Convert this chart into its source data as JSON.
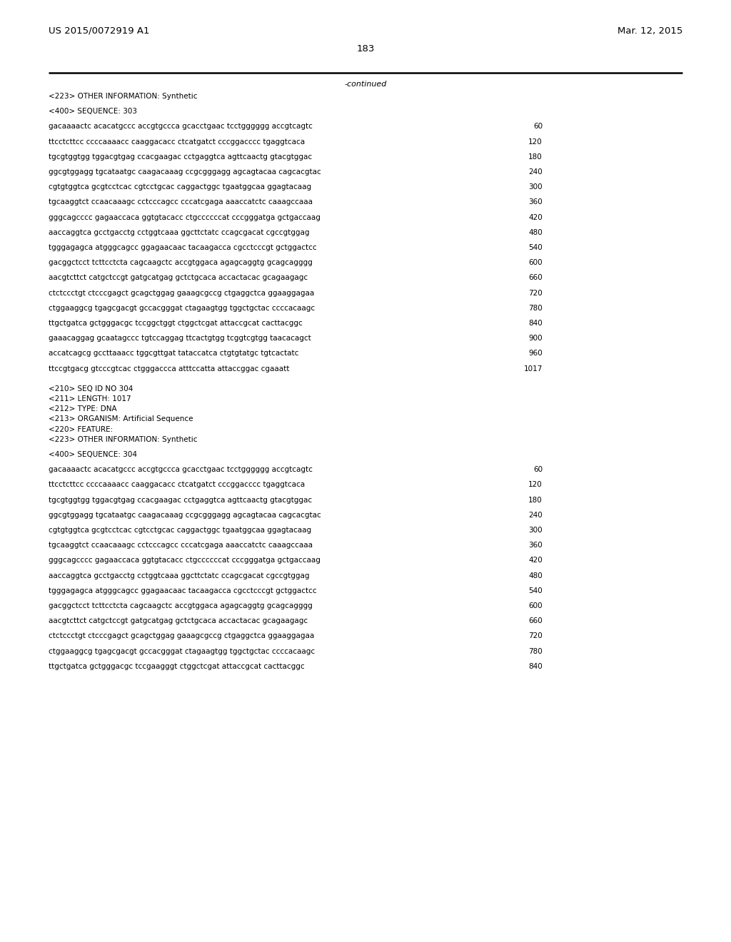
{
  "header_left": "US 2015/0072919 A1",
  "header_right": "Mar. 12, 2015",
  "page_number": "183",
  "continued_text": "-continued",
  "background_color": "#ffffff",
  "text_color": "#000000",
  "font_size_header": 9.5,
  "font_size_body": 7.5,
  "lines": [
    {
      "type": "meta",
      "text": "<223> OTHER INFORMATION: Synthetic"
    },
    {
      "type": "blank"
    },
    {
      "type": "meta",
      "text": "<400> SEQUENCE: 303"
    },
    {
      "type": "blank"
    },
    {
      "type": "seq",
      "text": "gacaaaactc acacatgccc accgtgccca gcacctgaac tcctgggggg accgtcagtc",
      "num": "60"
    },
    {
      "type": "blank"
    },
    {
      "type": "seq",
      "text": "ttcctcttcc ccccaaaacc caaggacacc ctcatgatct cccggacccc tgaggtcaca",
      "num": "120"
    },
    {
      "type": "blank"
    },
    {
      "type": "seq",
      "text": "tgcgtggtgg tggacgtgag ccacgaagac cctgaggtca agttcaactg gtacgtggac",
      "num": "180"
    },
    {
      "type": "blank"
    },
    {
      "type": "seq",
      "text": "ggcgtggagg tgcataatgc caagacaaag ccgcgggagg agcagtacaa cagcacgtac",
      "num": "240"
    },
    {
      "type": "blank"
    },
    {
      "type": "seq",
      "text": "cgtgtggtca gcgtcctcac cgtcctgcac caggactggc tgaatggcaa ggagtacaag",
      "num": "300"
    },
    {
      "type": "blank"
    },
    {
      "type": "seq",
      "text": "tgcaaggtct ccaacaaagc cctcccagcc cccatcgaga aaaccatctc caaagccaaa",
      "num": "360"
    },
    {
      "type": "blank"
    },
    {
      "type": "seq",
      "text": "gggcagcccc gagaaccaca ggtgtacacc ctgccccccat cccgggatga gctgaccaag",
      "num": "420"
    },
    {
      "type": "blank"
    },
    {
      "type": "seq",
      "text": "aaccaggtca gcctgacctg cctggtcaaa ggcttctatc ccagcgacat cgccgtggag",
      "num": "480"
    },
    {
      "type": "blank"
    },
    {
      "type": "seq",
      "text": "tgggagagca atgggcagcc ggagaacaac tacaagacca cgcctcccgt gctggactcc",
      "num": "540"
    },
    {
      "type": "blank"
    },
    {
      "type": "seq",
      "text": "gacggctcct tcttcctcta cagcaagctc accgtggaca agagcaggtg gcagcagggg",
      "num": "600"
    },
    {
      "type": "blank"
    },
    {
      "type": "seq",
      "text": "aacgtcttct catgctccgt gatgcatgag gctctgcaca accactacac gcagaagagc",
      "num": "660"
    },
    {
      "type": "blank"
    },
    {
      "type": "seq",
      "text": "ctctccctgt ctcccgagct gcagctggag gaaagcgccg ctgaggctca ggaaggagaa",
      "num": "720"
    },
    {
      "type": "blank"
    },
    {
      "type": "seq",
      "text": "ctggaaggcg tgagcgacgt gccacgggat ctagaagtgg tggctgctac ccccacaagc",
      "num": "780"
    },
    {
      "type": "blank"
    },
    {
      "type": "seq",
      "text": "ttgctgatca gctgggacgc tccggctggt ctggctcgat attaccgcat cacttacggc",
      "num": "840"
    },
    {
      "type": "blank"
    },
    {
      "type": "seq",
      "text": "gaaacaggag gcaatagccc tgtccaggag ttcactgtgg tcggtcgtgg taacacagct",
      "num": "900"
    },
    {
      "type": "blank"
    },
    {
      "type": "seq",
      "text": "accatcagcg gccttaaacc tggcgttgat tataccatca ctgtgtatgc tgtcactatc",
      "num": "960"
    },
    {
      "type": "blank"
    },
    {
      "type": "seq",
      "text": "ttccgtgacg gtcccgtcac ctgggaccca atttccatta attaccggac cgaaatt",
      "num": "1017"
    },
    {
      "type": "blank"
    },
    {
      "type": "blank"
    },
    {
      "type": "meta",
      "text": "<210> SEQ ID NO 304"
    },
    {
      "type": "meta",
      "text": "<211> LENGTH: 1017"
    },
    {
      "type": "meta",
      "text": "<212> TYPE: DNA"
    },
    {
      "type": "meta",
      "text": "<213> ORGANISM: Artificial Sequence"
    },
    {
      "type": "meta",
      "text": "<220> FEATURE:"
    },
    {
      "type": "meta",
      "text": "<223> OTHER INFORMATION: Synthetic"
    },
    {
      "type": "blank"
    },
    {
      "type": "meta",
      "text": "<400> SEQUENCE: 304"
    },
    {
      "type": "blank"
    },
    {
      "type": "seq",
      "text": "gacaaaactc acacatgccc accgtgccca gcacctgaac tcctgggggg accgtcagtc",
      "num": "60"
    },
    {
      "type": "blank"
    },
    {
      "type": "seq",
      "text": "ttcctcttcc ccccaaaacc caaggacacc ctcatgatct cccggacccc tgaggtcaca",
      "num": "120"
    },
    {
      "type": "blank"
    },
    {
      "type": "seq",
      "text": "tgcgtggtgg tggacgtgag ccacgaagac cctgaggtca agttcaactg gtacgtggac",
      "num": "180"
    },
    {
      "type": "blank"
    },
    {
      "type": "seq",
      "text": "ggcgtggagg tgcataatgc caagacaaag ccgcgggagg agcagtacaa cagcacgtac",
      "num": "240"
    },
    {
      "type": "blank"
    },
    {
      "type": "seq",
      "text": "cgtgtggtca gcgtcctcac cgtcctgcac caggactggc tgaatggcaa ggagtacaag",
      "num": "300"
    },
    {
      "type": "blank"
    },
    {
      "type": "seq",
      "text": "tgcaaggtct ccaacaaagc cctcccagcc cccatcgaga aaaccatctc caaagccaaa",
      "num": "360"
    },
    {
      "type": "blank"
    },
    {
      "type": "seq",
      "text": "gggcagcccc gagaaccaca ggtgtacacc ctgccccccat cccgggatga gctgaccaag",
      "num": "420"
    },
    {
      "type": "blank"
    },
    {
      "type": "seq",
      "text": "aaccaggtca gcctgacctg cctggtcaaa ggcttctatc ccagcgacat cgccgtggag",
      "num": "480"
    },
    {
      "type": "blank"
    },
    {
      "type": "seq",
      "text": "tgggagagca atgggcagcc ggagaacaac tacaagacca cgcctcccgt gctggactcc",
      "num": "540"
    },
    {
      "type": "blank"
    },
    {
      "type": "seq",
      "text": "gacggctcct tcttcctcta cagcaagctc accgtggaca agagcaggtg gcagcagggg",
      "num": "600"
    },
    {
      "type": "blank"
    },
    {
      "type": "seq",
      "text": "aacgtcttct catgctccgt gatgcatgag gctctgcaca accactacac gcagaagagc",
      "num": "660"
    },
    {
      "type": "blank"
    },
    {
      "type": "seq",
      "text": "ctctccctgt ctcccgagct gcagctggag gaaagcgccg ctgaggctca ggaaggagaa",
      "num": "720"
    },
    {
      "type": "blank"
    },
    {
      "type": "seq",
      "text": "ctggaaggcg tgagcgacgt gccacgggat ctagaagtgg tggctgctac ccccacaagc",
      "num": "780"
    },
    {
      "type": "blank"
    },
    {
      "type": "seq",
      "text": "ttgctgatca gctgggacgc tccgaagggt ctggctcgat attaccgcat cacttacggc",
      "num": "840"
    }
  ]
}
